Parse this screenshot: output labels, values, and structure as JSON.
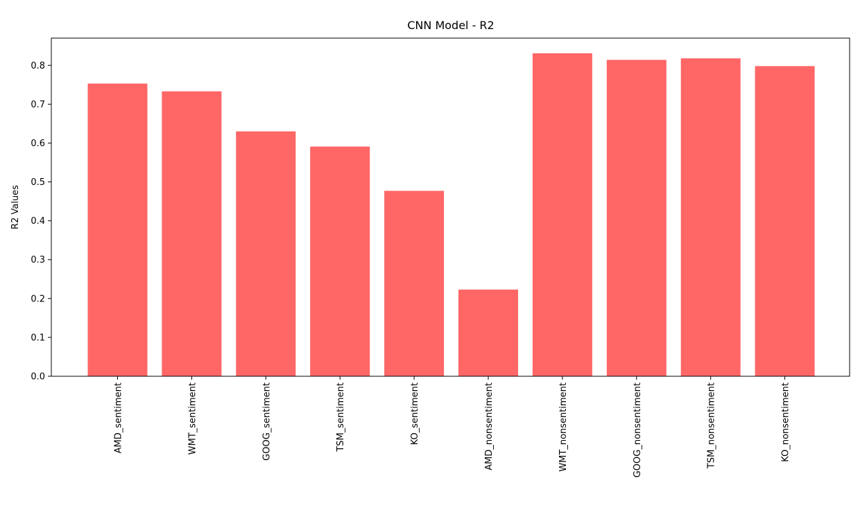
{
  "chart_data": {
    "type": "bar",
    "title": "CNN Model - R2",
    "xlabel": "",
    "ylabel": "R2 Values",
    "categories": [
      "AMD_sentiment",
      "WMT_sentiment",
      "GOOG_sentiment",
      "TSM_sentiment",
      "KO_sentiment",
      "AMD_nonsentiment",
      "WMT_nonsentiment",
      "GOOG_nonsentiment",
      "TSM_nonsentiment",
      "KO_nonsentiment"
    ],
    "values": [
      0.753,
      0.733,
      0.63,
      0.591,
      0.477,
      0.223,
      0.831,
      0.814,
      0.818,
      0.798
    ],
    "ylim": [
      0,
      0.87
    ],
    "yticks": [
      "0.0",
      "0.1",
      "0.2",
      "0.3",
      "0.4",
      "0.5",
      "0.6",
      "0.7",
      "0.8"
    ],
    "bar_color": "#ff6666",
    "grid": false,
    "legend": "none"
  }
}
